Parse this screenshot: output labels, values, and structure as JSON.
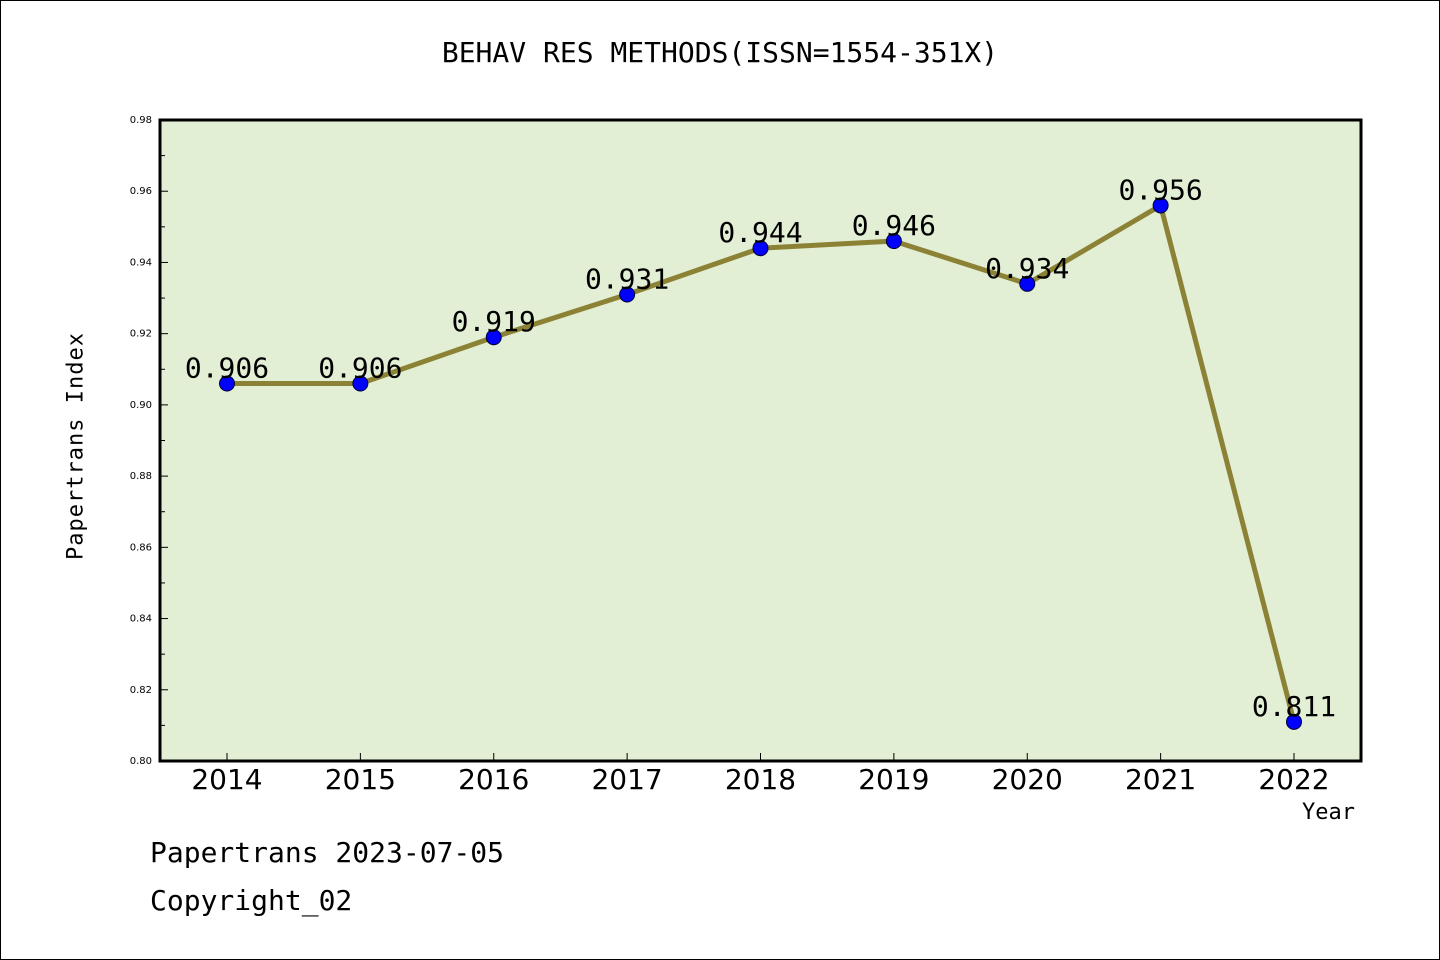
{
  "chart_data": {
    "type": "line",
    "title": "BEHAV RES METHODS(ISSN=1554-351X)",
    "xlabel": "Year",
    "ylabel": "Papertrans Index",
    "categories": [
      "2014",
      "2015",
      "2016",
      "2017",
      "2018",
      "2019",
      "2020",
      "2021",
      "2022"
    ],
    "values": [
      0.906,
      0.906,
      0.919,
      0.931,
      0.944,
      0.946,
      0.934,
      0.956,
      0.811
    ],
    "data_labels": [
      "0.906",
      "0.906",
      "0.919",
      "0.931",
      "0.944",
      "0.946",
      "0.934",
      "0.956",
      "0.811"
    ],
    "ylim": [
      0.8,
      0.98
    ],
    "yticks": [
      "0.80",
      "0.82",
      "0.84",
      "0.86",
      "0.88",
      "0.90",
      "0.92",
      "0.94",
      "0.96",
      "0.98"
    ],
    "grid": false,
    "colors": {
      "plot_background": "#e2efd4",
      "line": "#8b8235",
      "marker": "#0000ff"
    }
  },
  "footer": {
    "line1": "Papertrans 2023-07-05",
    "line2": "Copyright_02"
  }
}
